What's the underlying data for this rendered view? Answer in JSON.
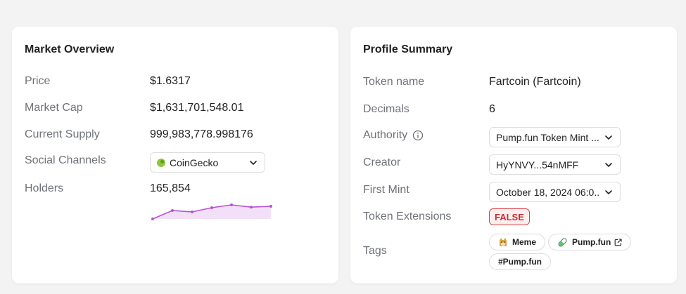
{
  "market": {
    "title": "Market Overview",
    "price_label": "Price",
    "price": "$1.6317",
    "market_cap_label": "Market Cap",
    "market_cap": "$1,631,701,548.01",
    "supply_label": "Current Supply",
    "supply": "999,983,778.998176",
    "social_label": "Social Channels",
    "social_selected": "CoinGecko",
    "holders_label": "Holders",
    "holders": "165,854",
    "holders_trend": [
      2,
      5,
      4.5,
      6,
      7,
      6.2,
      6.5
    ],
    "trend_color": "#b752d6"
  },
  "profile": {
    "title": "Profile Summary",
    "token_name_label": "Token name",
    "token_name": "Fartcoin (Fartcoin)",
    "decimals_label": "Decimals",
    "decimals": "6",
    "authority_label": "Authority",
    "authority_selected": "Pump.fun Token Mint ...",
    "creator_label": "Creator",
    "creator_selected": "HyYNVY...54nMFF",
    "first_mint_label": "First Mint",
    "first_mint_selected": "October 18, 2024 06:0...",
    "extensions_label": "Token Extensions",
    "extensions_value": "FALSE",
    "tags_label": "Tags",
    "tags": [
      "Meme",
      "Pump.fun",
      "#Pump.fun"
    ]
  },
  "icons": {
    "chevron": "chevron-down-icon",
    "info": "info-icon",
    "coingecko": "coingecko-icon",
    "meme": "doge-icon",
    "pump": "pill-icon",
    "external": "external-link-icon"
  },
  "colors": {
    "false_badge": "#d9434a",
    "trend": "#b752d6"
  }
}
